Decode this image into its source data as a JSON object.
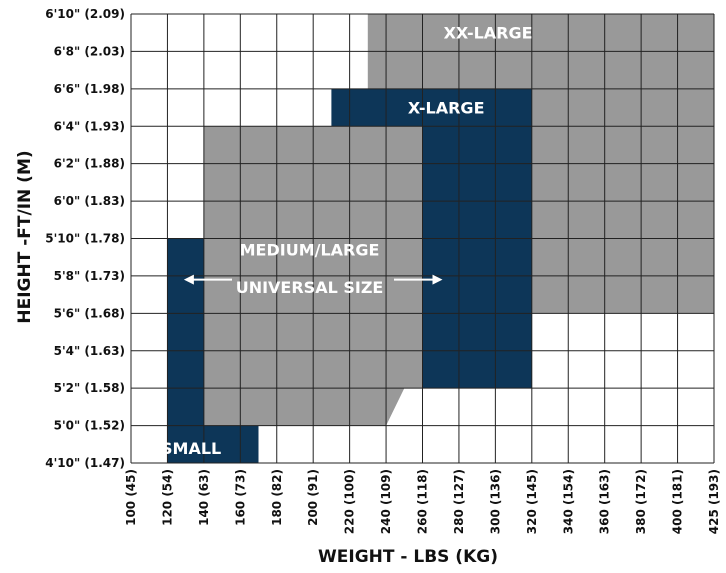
{
  "chart_data": {
    "type": "heatmap",
    "title": "",
    "xlabel": "WEIGHT - LBS (KG)",
    "ylabel": "HEIGHT -FT/IN (M)",
    "x_ticks": [
      "100 (45)",
      "120 (54)",
      "140 (63)",
      "160 (73)",
      "180 (82)",
      "200 (91)",
      "220 (100)",
      "240 (109)",
      "260 (118)",
      "280 (127)",
      "300 (136)",
      "320 (145)",
      "340 (154)",
      "360 (163)",
      "380 (172)",
      "400 (181)",
      "425 (193)"
    ],
    "y_ticks": [
      "4'10\" (1.47)",
      "5'0\" (1.52)",
      "5'2\" (1.58)",
      "5'4\" (1.63)",
      "5'6\" (1.68)",
      "5'8\" (1.73)",
      "5'10\" (1.78)",
      "6'0\" (1.83)",
      "6'2\" (1.88)",
      "6'4\" (1.93)",
      "6'6\" (1.98)",
      "6'8\" (2.03)",
      "6'10\" (2.09)"
    ],
    "colors": {
      "grey": "#999999",
      "navy": "#0d3658",
      "grid": "#222222",
      "label": "#ffffff"
    },
    "zones": [
      {
        "name": "XX-LARGE",
        "color": "#999999",
        "polygon": [
          [
            230,
            82
          ],
          [
            425,
            82
          ],
          [
            425,
            66
          ],
          [
            320,
            66
          ],
          [
            320,
            62
          ],
          [
            260,
            62
          ],
          [
            260,
            78
          ],
          [
            230,
            78
          ]
        ]
      },
      {
        "name": "X-LARGE",
        "color": "#0d3658",
        "polygon": [
          [
            210,
            78
          ],
          [
            320,
            78
          ],
          [
            320,
            62
          ],
          [
            260,
            62
          ],
          [
            260,
            76
          ],
          [
            210,
            76
          ]
        ]
      },
      {
        "name": "MEDIUM/LARGE",
        "color": "#999999",
        "polygon": [
          [
            140,
            60
          ],
          [
            140,
            76
          ],
          [
            260,
            76
          ],
          [
            260,
            62
          ],
          [
            250,
            62
          ],
          [
            240,
            60
          ]
        ]
      },
      {
        "name": "SMALL",
        "color": "#0d3658",
        "polygon": [
          [
            120,
            58
          ],
          [
            120,
            70
          ],
          [
            140,
            70
          ],
          [
            140,
            60
          ],
          [
            170,
            60
          ],
          [
            170,
            58
          ]
        ]
      }
    ],
    "labels": [
      {
        "text": "XX-LARGE",
        "x": 296,
        "y": 81,
        "color": "#ffffff"
      },
      {
        "text": "X-LARGE",
        "x": 273,
        "y": 77,
        "color": "#ffffff"
      },
      {
        "text": "MEDIUM/LARGE",
        "x": 198,
        "y": 69.4,
        "color": "#ffffff"
      },
      {
        "text": "UNIVERSAL SIZE",
        "x": 198,
        "y": 67.4,
        "color": "#ffffff"
      },
      {
        "text": "SMALL",
        "x": 133,
        "y": 58.8,
        "color": "#ffffff"
      }
    ],
    "arrow": {
      "x_start": 140,
      "x_end": 260,
      "y": 67.8,
      "color": "#ffffff"
    }
  }
}
